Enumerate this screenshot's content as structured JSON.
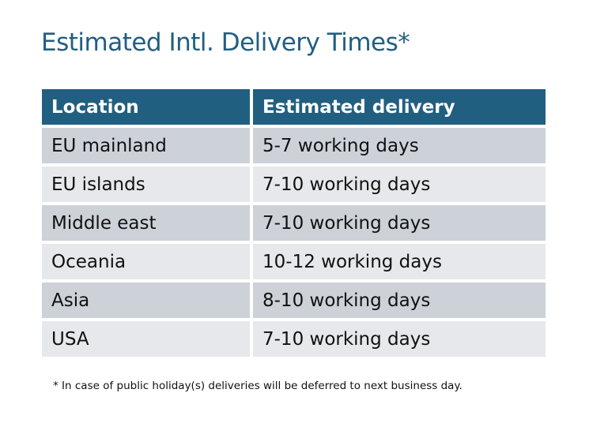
{
  "title": "Estimated Intl. Delivery Times*",
  "colors": {
    "header": "#215f80",
    "row_dark": "#cdd2d9",
    "row_light": "#e6e8eb",
    "title": "#215f80"
  },
  "table": {
    "headers": [
      "Location",
      "Estimated delivery"
    ],
    "rows": [
      [
        "EU mainland",
        "5-7 working days"
      ],
      [
        "EU islands",
        "7-10 working days"
      ],
      [
        "Middle east",
        "7-10 working days"
      ],
      [
        "Oceania",
        "10-12 working days"
      ],
      [
        "Asia",
        "8-10 working days"
      ],
      [
        "USA",
        "7-10 working days"
      ]
    ]
  },
  "footnote": "* In case of public holiday(s) deliveries will be deferred to next business day."
}
